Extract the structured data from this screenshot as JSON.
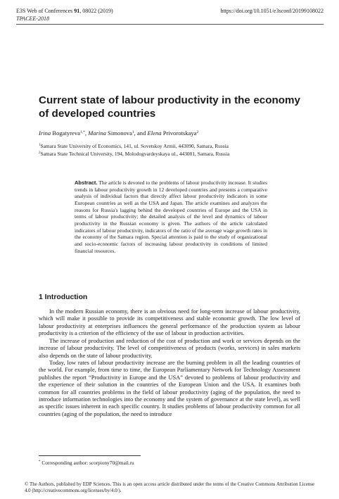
{
  "header": {
    "journal_prefix": "E3S Web of Conferences ",
    "volume": "91",
    "article_info": ", 08022 (2019)",
    "conference": "TPACEE-2018",
    "doi": "https://doi.org/10.1051/e3sconf/20199108022"
  },
  "title": "Current state of labour productivity in the economy of developed countries",
  "authors": [
    {
      "given": "Irina",
      "family": " Bogatyreva",
      "sup": "1,*",
      "sep": ", "
    },
    {
      "given": "Marina",
      "family": " Simonova",
      "sup": "1",
      "sep": ", and "
    },
    {
      "given": "Elena",
      "family": " Privorotskaya",
      "sup": "2",
      "sep": ""
    }
  ],
  "affiliations": [
    {
      "sup": "1",
      "text": "Samara State University of Economics, 141, ul. Sovetskoy Armii, 443090, Samara, Russia"
    },
    {
      "sup": "2",
      "text": "Samara State Technical University, 194, Molodogvardeyskaya ul., 443001, Samara, Russia"
    }
  ],
  "abstract": {
    "label": "Abstract.",
    "text": " The article is devoted to the problems of labour productivity increase. It studies trends in labour productivity growth in 12 developed countries and presents a comparative analysis of individual factors that directly affect labour productivity indicators in some European countries as well as the USA and Japan. The article examines and analyzes the reasons for Russia's lagging behind the developed countries of Europe and the USA in terms of labour productivity; the detailed analysis of the level and dynamics of labour productivity in the Russian economy is given. The authors of the article calculated indicators of labour productivity, indicators of the ratio of the average wage growth rates in the economy of the Samara region. Special attention is paid to the study of organizational and socio-economic factors of increasing labour productivity in conditions of limited financial resources."
  },
  "section": {
    "heading": "1 Introduction",
    "paragraphs": [
      "In the modern Russian economy, there is an obvious need for long-term increase of labour productivity, which will make it possible to provide its competitiveness and stable economic growth. The low level of labour productivity at enterprises influences the general performance of the production system as labour productivity is a criterion of the efficiency of the use of labour in production activities.",
      "The increase of production and reduction of the cost of production and work or services depends on the increase of labour productivity. The level of competitiveness of products (works, services) in sales markets also depends on the state of labour productivity.",
      "Today, low rates of labour productivity increase are the burning problem in all the leading countries of the world. For example, from time to time, the European Parliamentary Network for Technology Assessment publishes the report “Productivity in Europe and the USA” devoted to problems of labour productivity and the experience of their solution in the countries of the European Union and the USA. It examines both common for all countries problems in the field of labour productivity (aging of the population, the need to introduce information technologies into the economy and the system of governance at the state level), as well as specific issues inherent in each specific country. It studies problems of labour productivity common for all countries (aging of the population, the need to introduce"
    ]
  },
  "footnote": {
    "sup": "*",
    "text": " Corresponding author: scorpiony70@mail.ru"
  },
  "license": "© The Authors, published by EDP Sciences. This is an open access article distributed under the terms of the Creative Commons Attribution License 4.0 (http://creativecommons.org/licenses/by/4.0/)."
}
